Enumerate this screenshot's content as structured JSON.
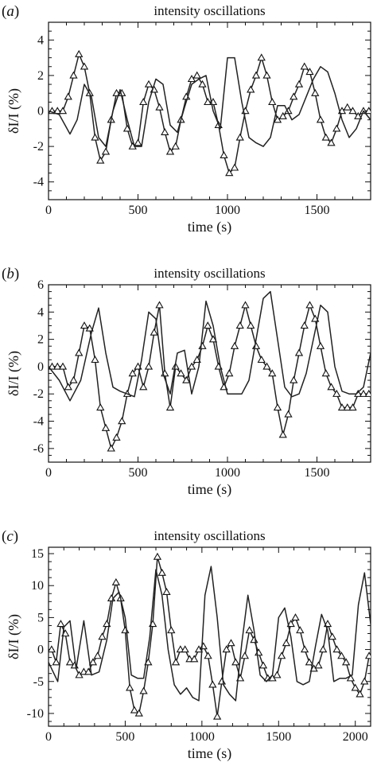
{
  "chart_data": [
    {
      "type": "line",
      "panel_label": "a",
      "title": "intensity oscillations",
      "xlabel": "time (s)",
      "ylabel": "δI/I (%)",
      "xlim": [
        0,
        1800
      ],
      "ylim": [
        -5,
        5
      ],
      "xticks": [
        0,
        500,
        1000,
        1500
      ],
      "yticks": [
        -4,
        -2,
        0,
        2,
        4
      ],
      "series": [
        {
          "marker": "triangle",
          "x": [
            20,
            50,
            80,
            110,
            140,
            170,
            200,
            230,
            260,
            290,
            320,
            350,
            380,
            410,
            440,
            470,
            500,
            530,
            560,
            590,
            620,
            650,
            680,
            710,
            740,
            770,
            800,
            830,
            860,
            890,
            920,
            950,
            980,
            1010,
            1040,
            1070,
            1100,
            1130,
            1160,
            1190,
            1220,
            1250,
            1280,
            1310,
            1340,
            1370,
            1400,
            1430,
            1460,
            1490,
            1520,
            1550,
            1580,
            1610,
            1640,
            1670,
            1700,
            1730,
            1760,
            1790
          ],
          "y": [
            0,
            0,
            0,
            0.8,
            2.0,
            3.2,
            2.5,
            1.0,
            -1.5,
            -2.8,
            -2.3,
            -0.5,
            1.0,
            1.0,
            -1.0,
            -2.0,
            -1.8,
            0.5,
            1.5,
            1.2,
            0.2,
            -1.2,
            -2.3,
            -2.0,
            -0.5,
            0.8,
            1.8,
            2.0,
            1.5,
            0.5,
            0.5,
            -0.8,
            -2.5,
            -3.5,
            -3.2,
            -1.5,
            0,
            1.2,
            2.0,
            3.0,
            2.0,
            0.5,
            -0.5,
            -0.3,
            0,
            0.8,
            1.5,
            2.5,
            2.2,
            1.0,
            -0.5,
            -1.5,
            -1.8,
            -1.0,
            0,
            0.2,
            0,
            -0.3,
            0,
            0
          ]
        },
        {
          "marker": "none",
          "x": [
            0,
            60,
            120,
            160,
            200,
            240,
            280,
            320,
            360,
            400,
            440,
            480,
            520,
            560,
            600,
            640,
            680,
            720,
            760,
            800,
            840,
            880,
            920,
            960,
            1000,
            1040,
            1080,
            1120,
            1160,
            1200,
            1240,
            1280,
            1320,
            1360,
            1400,
            1440,
            1480,
            1520,
            1560,
            1600,
            1640,
            1680,
            1720,
            1760,
            1800
          ],
          "y": [
            0,
            -0.2,
            -1.3,
            -0.5,
            1.5,
            0.8,
            -1.5,
            -2.0,
            0,
            1.2,
            -0.5,
            -2.0,
            -2.0,
            0.5,
            1.8,
            1.5,
            -0.8,
            -1.2,
            0.2,
            1.5,
            1.8,
            2.0,
            0,
            -1.0,
            3.0,
            3.0,
            0.5,
            -1.5,
            -1.8,
            -2.0,
            -1.5,
            0.3,
            0.3,
            -0.5,
            -0.2,
            0.8,
            1.8,
            2.5,
            2.2,
            1.0,
            -0.5,
            -1.5,
            -1.0,
            0,
            -0.5
          ]
        }
      ]
    },
    {
      "type": "line",
      "panel_label": "b",
      "title": "intensity oscillations",
      "xlabel": "time (s)",
      "ylabel": "δI/I (%)",
      "xlim": [
        0,
        1800
      ],
      "ylim": [
        -7,
        6
      ],
      "xticks": [
        0,
        500,
        1000,
        1500
      ],
      "yticks": [
        -6,
        -4,
        -2,
        0,
        2,
        4,
        6
      ],
      "series": [
        {
          "marker": "triangle",
          "x": [
            20,
            50,
            80,
            110,
            140,
            170,
            200,
            230,
            260,
            290,
            320,
            350,
            380,
            410,
            440,
            470,
            500,
            530,
            560,
            590,
            620,
            650,
            680,
            710,
            740,
            770,
            800,
            830,
            860,
            890,
            920,
            950,
            980,
            1010,
            1040,
            1070,
            1100,
            1130,
            1160,
            1190,
            1220,
            1250,
            1280,
            1310,
            1340,
            1370,
            1400,
            1430,
            1460,
            1490,
            1520,
            1550,
            1580,
            1610,
            1640,
            1670,
            1700,
            1730,
            1760,
            1790
          ],
          "y": [
            0,
            0,
            0,
            -1.5,
            -1.0,
            1.0,
            3.0,
            2.8,
            0.5,
            -3.0,
            -4.5,
            -6.0,
            -5.2,
            -4.0,
            -2.0,
            -0.5,
            0,
            -1.5,
            0,
            2.5,
            4.5,
            -0.5,
            -3.0,
            0,
            -0.5,
            -1.0,
            0,
            0.5,
            1.5,
            3.0,
            2.0,
            0,
            -1.5,
            -0.5,
            1.5,
            3.0,
            4.5,
            3.0,
            1.5,
            0.5,
            0,
            -0.5,
            -3.0,
            -5.0,
            -3.5,
            -1.0,
            1.0,
            3.0,
            4.5,
            3.5,
            1.5,
            -0.5,
            -1.5,
            -2.0,
            -3.0,
            -3.0,
            -3.0,
            -2.0,
            -2.0,
            -2.0
          ]
        },
        {
          "marker": "none",
          "x": [
            0,
            60,
            120,
            180,
            240,
            280,
            320,
            360,
            400,
            440,
            480,
            520,
            560,
            600,
            640,
            680,
            720,
            760,
            800,
            840,
            880,
            920,
            960,
            1000,
            1040,
            1080,
            1120,
            1160,
            1200,
            1240,
            1280,
            1320,
            1360,
            1400,
            1440,
            1480,
            1520,
            1560,
            1600,
            1640,
            1680,
            1720,
            1760,
            1800
          ],
          "y": [
            0,
            -1.0,
            -2.5,
            -1.0,
            2.5,
            4.3,
            1.0,
            -1.5,
            -1.8,
            -2.0,
            -2.2,
            0.5,
            4.0,
            3.5,
            -0.5,
            -2.0,
            1.0,
            1.2,
            -2.0,
            0,
            4.8,
            3.0,
            0,
            -2.0,
            -2.0,
            -2.0,
            -1.0,
            2.0,
            5.0,
            5.5,
            2.0,
            -1.5,
            -2.2,
            -2.0,
            -0.5,
            2.0,
            4.5,
            4.0,
            0,
            -1.8,
            -2.0,
            -2.0,
            -1.5,
            1.0
          ]
        }
      ]
    },
    {
      "type": "line",
      "panel_label": "c",
      "title": "intensity oscillations",
      "xlabel": "time (s)",
      "ylabel": "δI/I (%)",
      "xlim": [
        0,
        2100
      ],
      "ylim": [
        -12,
        16
      ],
      "xticks": [
        0,
        500,
        1000,
        1500,
        2000
      ],
      "yticks": [
        -10,
        -5,
        0,
        5,
        10,
        15
      ],
      "series": [
        {
          "marker": "triangle",
          "x": [
            20,
            50,
            80,
            110,
            140,
            170,
            200,
            230,
            260,
            290,
            320,
            350,
            380,
            410,
            440,
            470,
            500,
            530,
            560,
            590,
            620,
            650,
            680,
            710,
            740,
            770,
            800,
            830,
            860,
            890,
            920,
            950,
            980,
            1010,
            1040,
            1070,
            1100,
            1130,
            1160,
            1190,
            1220,
            1250,
            1280,
            1310,
            1340,
            1370,
            1400,
            1430,
            1460,
            1490,
            1520,
            1550,
            1580,
            1610,
            1640,
            1670,
            1700,
            1730,
            1760,
            1790,
            1820,
            1850,
            1880,
            1910,
            1940,
            1970,
            2000,
            2030,
            2060,
            2090
          ],
          "y": [
            0,
            -2.0,
            4.0,
            2.5,
            -2.0,
            -2.5,
            -4.0,
            -3.5,
            -3.5,
            -2.0,
            -1.0,
            2.0,
            4.0,
            8.0,
            10.5,
            8.0,
            3.0,
            -6.0,
            -9.5,
            -10.0,
            -6.5,
            -2.0,
            4.0,
            14.5,
            12.0,
            9.0,
            3.0,
            -2.0,
            0,
            0,
            -1.5,
            -1.5,
            0,
            0.5,
            -1.0,
            -5.5,
            -10.5,
            -5.0,
            0,
            1.0,
            -2.0,
            -4.5,
            -1.0,
            3.0,
            1.5,
            -0.5,
            -2.5,
            -4.5,
            -4.5,
            -4.0,
            -1.0,
            1.0,
            4.0,
            5.0,
            3.0,
            0,
            -2.0,
            -3.0,
            -2.5,
            0,
            4.0,
            2.0,
            0,
            -1.0,
            -2.0,
            -4.5,
            -6.0,
            -7.0,
            -5.0,
            -1.0
          ]
        },
        {
          "marker": "none",
          "x": [
            0,
            60,
            100,
            140,
            180,
            230,
            280,
            330,
            380,
            420,
            460,
            500,
            540,
            580,
            620,
            660,
            700,
            740,
            780,
            820,
            860,
            900,
            940,
            980,
            1020,
            1060,
            1100,
            1140,
            1180,
            1220,
            1260,
            1300,
            1340,
            1380,
            1420,
            1460,
            1500,
            1540,
            1580,
            1620,
            1660,
            1700,
            1740,
            1780,
            1820,
            1860,
            1900,
            1940,
            1980,
            2020,
            2060,
            2100
          ],
          "y": [
            -2.0,
            -5.0,
            3.5,
            4.5,
            -3.0,
            4.5,
            -4.0,
            -3.5,
            1.5,
            8.0,
            9.0,
            5.0,
            -4.0,
            -4.5,
            -4.5,
            2.0,
            12.5,
            8.5,
            0,
            -5.5,
            -7.0,
            -6.0,
            -7.5,
            -8.0,
            8.5,
            13.0,
            5.0,
            -5.5,
            -7.0,
            -8.0,
            1.0,
            8.5,
            3.0,
            -4.0,
            -5.0,
            -4.0,
            5.0,
            6.5,
            2.0,
            -5.0,
            -5.5,
            -5.0,
            0.5,
            5.5,
            3.0,
            -5.0,
            -4.5,
            -4.5,
            -4.0,
            7.0,
            12.0,
            4.0
          ]
        }
      ]
    }
  ]
}
